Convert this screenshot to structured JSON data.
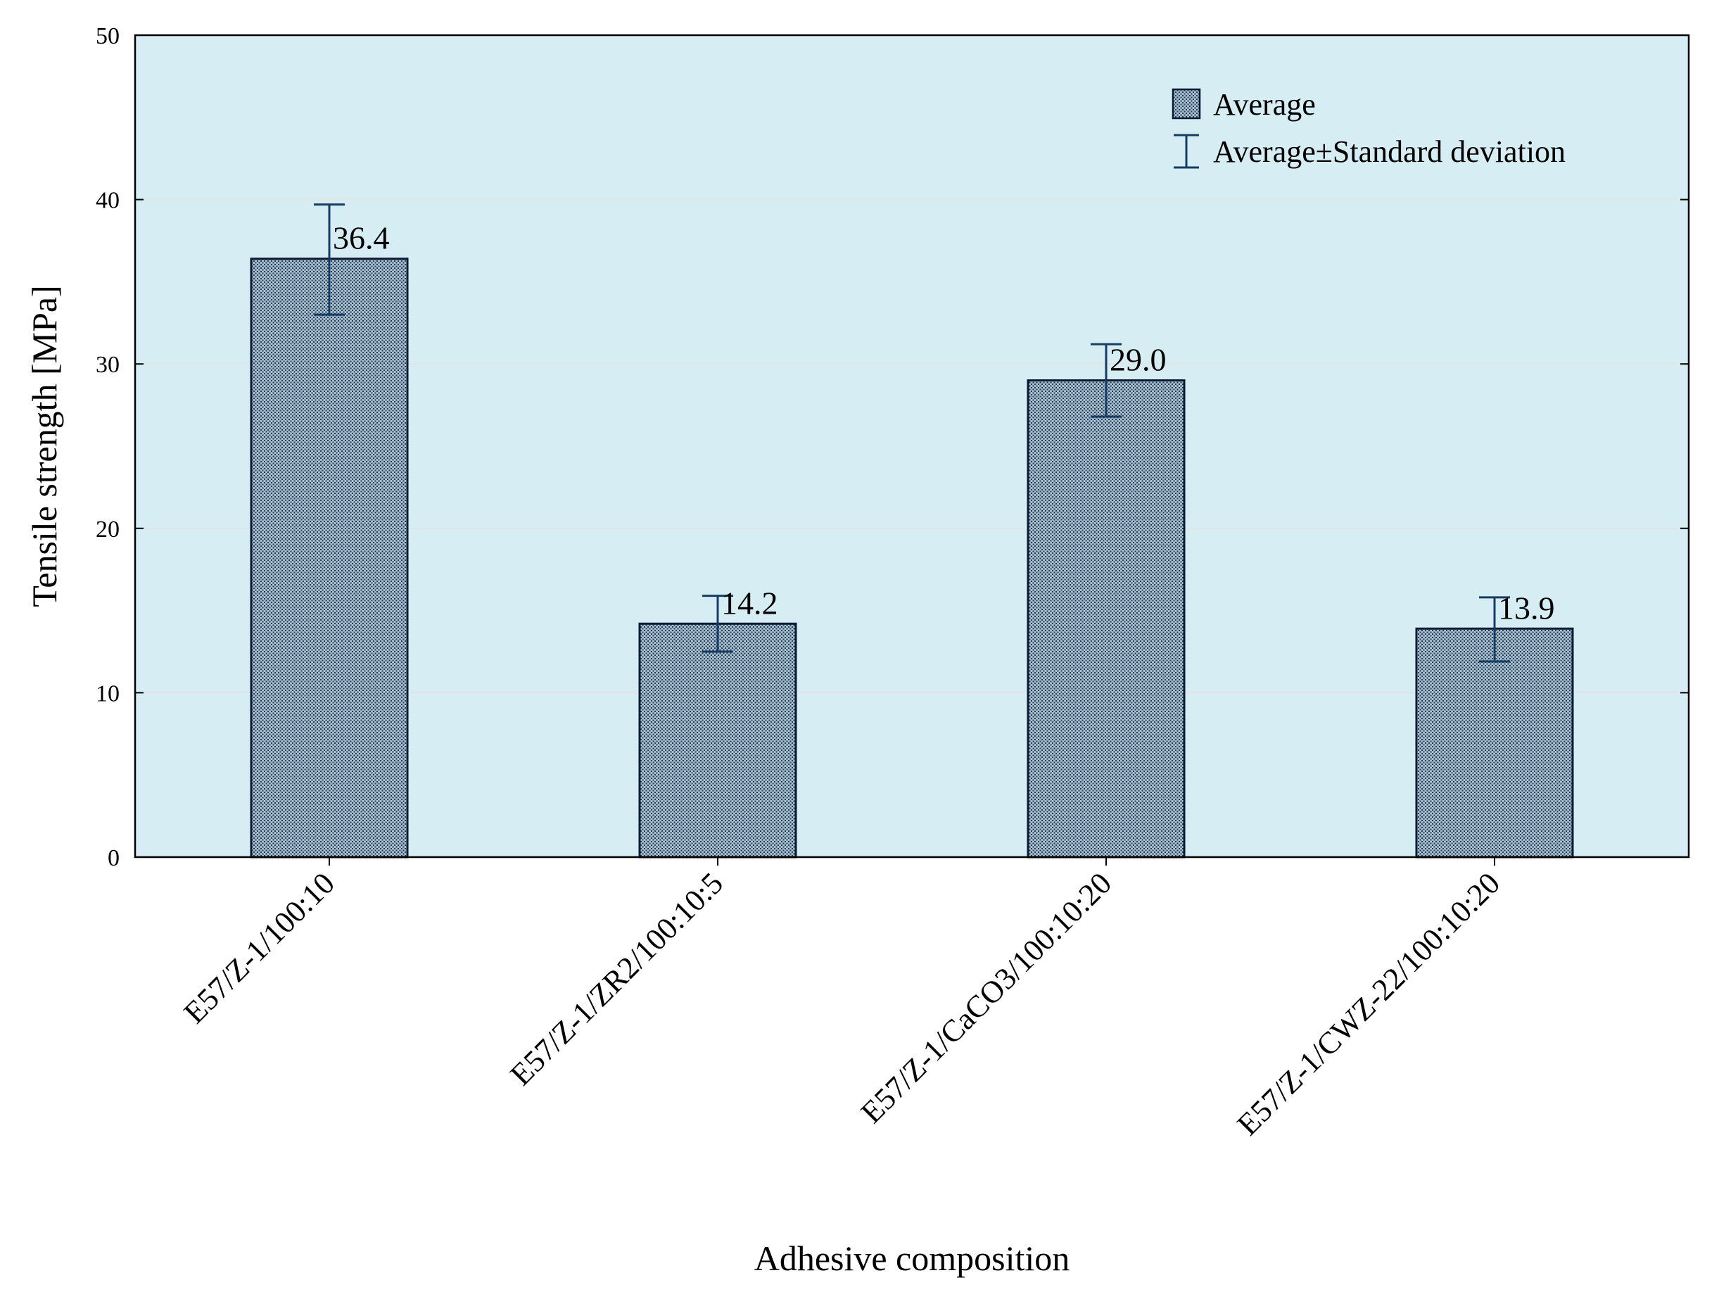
{
  "chart_data": {
    "type": "bar",
    "title": "",
    "xlabel": "Adhesive composition",
    "ylabel": "Tensile strength [MPa]",
    "ylim": [
      0,
      50
    ],
    "yticks": [
      0,
      10,
      20,
      30,
      40,
      50
    ],
    "grid": true,
    "categories": [
      "E57/Z-1/100:10",
      "E57/Z-1/ZR2/100:10:5",
      "E57/Z-1/CaCO3/100:10:20",
      "E57/Z-1/CWZ-22/100:10:20"
    ],
    "values": [
      36.4,
      14.2,
      29.0,
      13.9
    ],
    "value_labels": [
      "36.4",
      "14.2",
      "29.0",
      "13.9"
    ],
    "error_low": [
      33.0,
      12.5,
      26.8,
      11.9
    ],
    "error_high": [
      39.7,
      15.9,
      31.2,
      15.8
    ],
    "legend": {
      "position": "top-right",
      "items": [
        "Average",
        "Average±Standard deviation"
      ]
    },
    "colors": {
      "plot_background": "#d6eef3",
      "bar_fill": "#a9bfcc",
      "bar_pattern": "#1f3a57",
      "bar_edge": "#0b1a33",
      "error_bar": "#173c63",
      "gridline": "#e4e4e4",
      "axis": "#000000"
    }
  }
}
